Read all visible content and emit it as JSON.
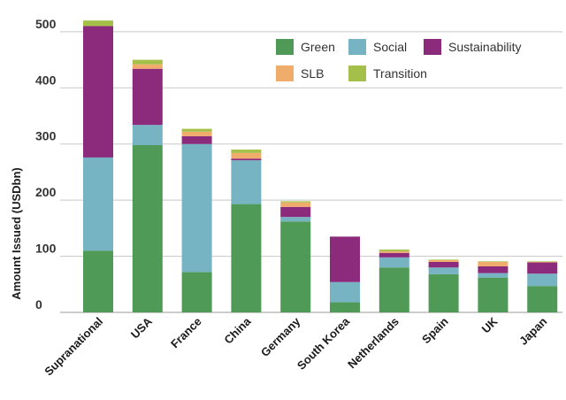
{
  "chart_data": {
    "type": "bar",
    "stacked": true,
    "title": "",
    "xlabel": "",
    "ylabel": "Amount Issued (USDbn)",
    "ylim": [
      0,
      525
    ],
    "yticks": [
      0,
      100,
      200,
      300,
      400,
      500
    ],
    "grid": true,
    "legend_position": "top-right",
    "categories": [
      "Supranational",
      "USA",
      "France",
      "China",
      "Germany",
      "South Korea",
      "Netherlands",
      "Spain",
      "UK",
      "Japan"
    ],
    "series": [
      {
        "name": "Green",
        "color": "#4e9a56",
        "values": [
          110,
          298,
          72,
          193,
          162,
          18,
          80,
          68,
          62,
          47
        ]
      },
      {
        "name": "Social",
        "color": "#76b3c3",
        "values": [
          166,
          36,
          228,
          78,
          8,
          36,
          18,
          12,
          8,
          22
        ]
      },
      {
        "name": "Sustainability",
        "color": "#8c2a7c",
        "values": [
          234,
          100,
          14,
          3,
          18,
          81,
          8,
          10,
          12,
          20
        ]
      },
      {
        "name": "SLB",
        "color": "#f0ac6a",
        "values": [
          0,
          8,
          8,
          10,
          8,
          0,
          3,
          3,
          8,
          1
        ]
      },
      {
        "name": "Transition",
        "color": "#a4c04a",
        "values": [
          10,
          8,
          5,
          6,
          2,
          0,
          3,
          1,
          1,
          1
        ]
      }
    ]
  }
}
